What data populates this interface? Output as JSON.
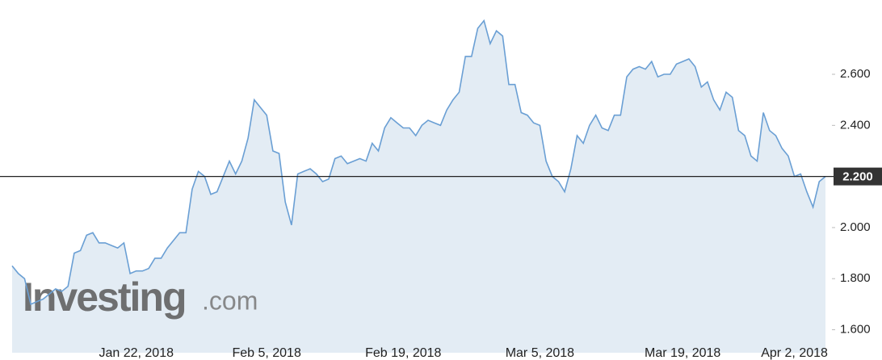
{
  "chart_data": {
    "type": "area",
    "watermark": {
      "name": "Investing",
      "suffix": ".com"
    },
    "categories": [
      null,
      null,
      null,
      null,
      null,
      null,
      null,
      null,
      null,
      null,
      null,
      null,
      null,
      null,
      null,
      null,
      null,
      null,
      null,
      null,
      "Jan 22, 2018",
      null,
      null,
      null,
      null,
      null,
      null,
      null,
      null,
      null,
      null,
      null,
      null,
      null,
      null,
      null,
      null,
      null,
      null,
      null,
      null,
      "Feb 5, 2018",
      null,
      null,
      null,
      null,
      null,
      null,
      null,
      null,
      null,
      null,
      null,
      null,
      null,
      null,
      null,
      null,
      null,
      null,
      null,
      null,
      null,
      "Feb 19, 2018",
      null,
      null,
      null,
      null,
      null,
      null,
      null,
      null,
      null,
      null,
      null,
      null,
      null,
      null,
      null,
      null,
      null,
      null,
      null,
      null,
      null,
      "Mar 5, 2018",
      null,
      null,
      null,
      null,
      null,
      null,
      null,
      null,
      null,
      null,
      null,
      null,
      null,
      null,
      null,
      null,
      null,
      null,
      null,
      null,
      null,
      null,
      "Mar 19, 2018",
      null,
      null,
      null,
      null,
      null,
      null,
      null,
      null,
      null,
      null,
      null,
      null,
      null,
      null,
      null,
      null,
      null,
      "Apr 2, 2018",
      null,
      null,
      null,
      null,
      null
    ],
    "values": [
      1.85,
      1.82,
      1.8,
      1.7,
      1.71,
      1.72,
      1.74,
      1.76,
      1.75,
      1.77,
      1.9,
      1.91,
      1.97,
      1.98,
      1.94,
      1.94,
      1.93,
      1.92,
      1.94,
      1.82,
      1.83,
      1.83,
      1.84,
      1.88,
      1.88,
      1.92,
      1.95,
      1.98,
      1.98,
      2.15,
      2.22,
      2.2,
      2.13,
      2.14,
      2.2,
      2.26,
      2.21,
      2.26,
      2.35,
      2.5,
      2.47,
      2.44,
      2.3,
      2.29,
      2.1,
      2.01,
      2.21,
      2.22,
      2.23,
      2.21,
      2.18,
      2.19,
      2.27,
      2.28,
      2.25,
      2.26,
      2.27,
      2.26,
      2.33,
      2.3,
      2.39,
      2.43,
      2.41,
      2.39,
      2.39,
      2.36,
      2.4,
      2.42,
      2.41,
      2.4,
      2.46,
      2.5,
      2.53,
      2.67,
      2.67,
      2.78,
      2.81,
      2.72,
      2.77,
      2.75,
      2.56,
      2.56,
      2.45,
      2.44,
      2.41,
      2.4,
      2.26,
      2.2,
      2.18,
      2.14,
      2.23,
      2.36,
      2.33,
      2.4,
      2.44,
      2.39,
      2.38,
      2.44,
      2.44,
      2.59,
      2.62,
      2.63,
      2.62,
      2.65,
      2.59,
      2.6,
      2.6,
      2.64,
      2.65,
      2.66,
      2.63,
      2.55,
      2.57,
      2.5,
      2.46,
      2.53,
      2.51,
      2.38,
      2.36,
      2.28,
      2.26,
      2.45,
      2.38,
      2.36,
      2.31,
      2.28,
      2.2,
      2.21,
      2.14,
      2.08,
      2.18,
      2.2
    ],
    "color": "#6a9fd4",
    "fill": "#e3ecf4",
    "ylim": [
      1.51,
      2.875
    ],
    "yticks": [
      {
        "value": 1.6,
        "label": "1.600"
      },
      {
        "value": 1.8,
        "label": "1.800"
      },
      {
        "value": 2.0,
        "label": "2.000"
      },
      {
        "value": 2.2,
        "label": "2.200"
      },
      {
        "value": 2.4,
        "label": "2.400"
      },
      {
        "value": 2.6,
        "label": "2.600"
      }
    ],
    "last_price": {
      "value": 2.2,
      "label": "2.200"
    }
  }
}
